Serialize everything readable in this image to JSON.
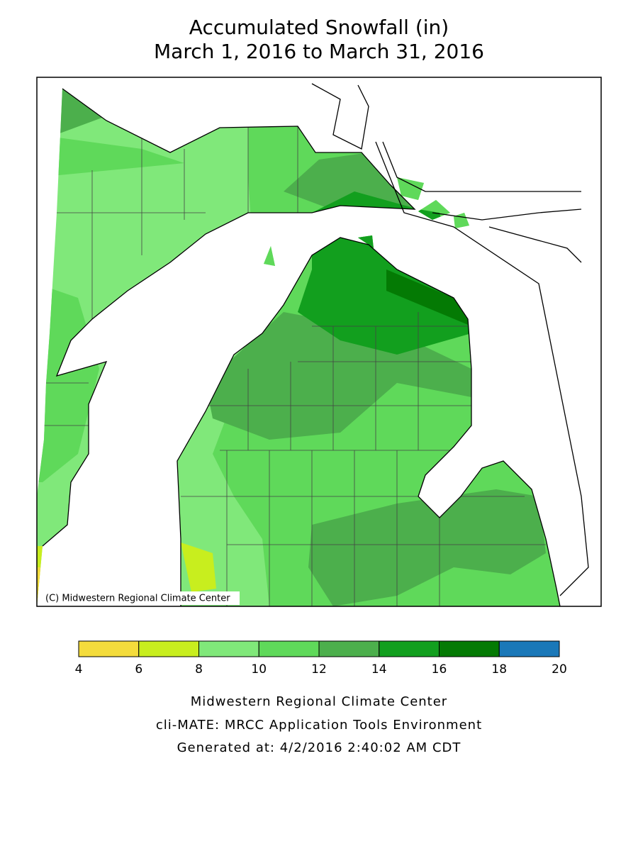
{
  "title": [
    "Accumulated Snowfall (in)",
    "March 1, 2016 to March 31, 2016"
  ],
  "map": {
    "copyright": "(C) Midwestern Regional Climate Center"
  },
  "legend": {
    "breaks": [
      4,
      6,
      8,
      10,
      12,
      14,
      16,
      18,
      20
    ],
    "colors": [
      "#f4dc3c",
      "#c8ee1e",
      "#80e87a",
      "#5fd95a",
      "#4caf4c",
      "#129f1e",
      "#047a04",
      "#1a78b8"
    ]
  },
  "footer": [
    "Midwestern Regional Climate Center",
    "cli-MATE: MRCC Application Tools Environment",
    "Generated at: 4/2/2016 2:40:02 AM CDT"
  ]
}
